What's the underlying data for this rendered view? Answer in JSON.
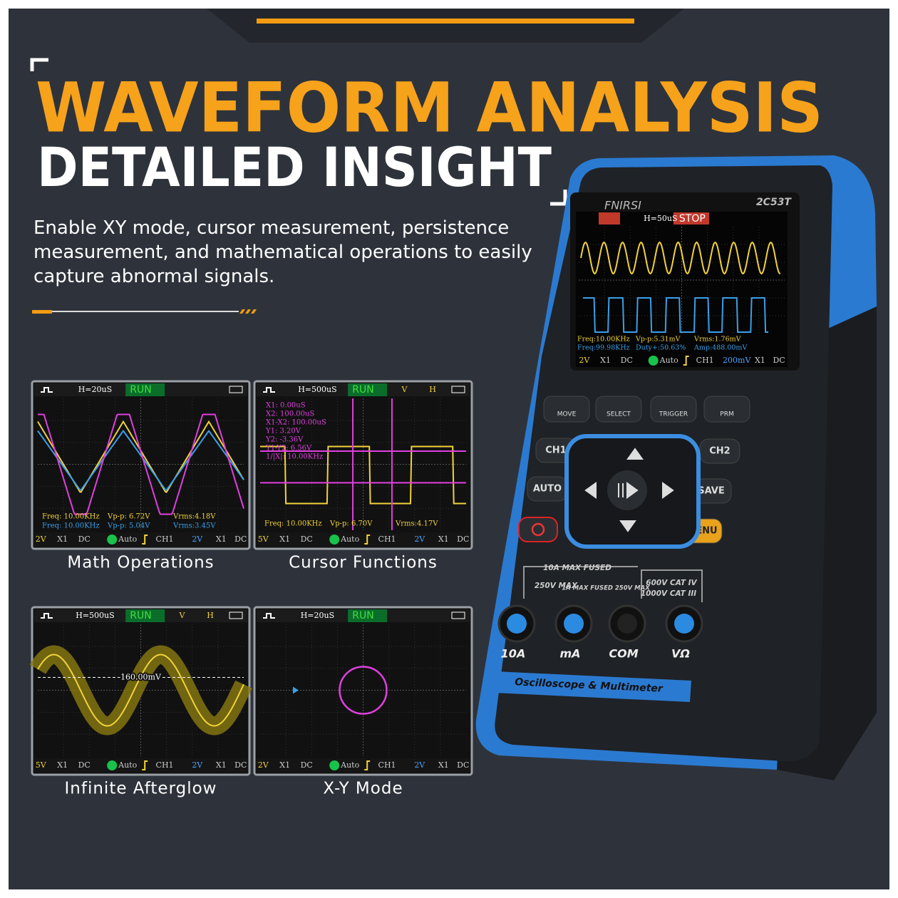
{
  "header": {
    "title": "WAVEFORM ANALYSIS",
    "subtitle": "DETAILED INSIGHT",
    "description": "Enable XY mode, cursor measurement, persistence measurement, and mathematical operations to easily capture abnormal signals."
  },
  "panels": [
    {
      "caption": "Math Operations",
      "status": [
        "H=20uS",
        "RUN"
      ],
      "readouts": [
        [
          "Freq: 10.00KHz",
          "Vp-p: 6.72V",
          "Vrms:4.18V"
        ],
        [
          "Freq: 10.00KHz",
          "Vp-p: 5.04V",
          "Vrms:3.45V"
        ]
      ],
      "footer": [
        "2V",
        "X1",
        "DC",
        "Auto",
        "CH1",
        "2V",
        "X1",
        "DC"
      ]
    },
    {
      "caption": "Cursor Functions",
      "status": [
        "H=500uS",
        "RUN",
        "V",
        "H"
      ],
      "cursors": [
        "X1:    0.00uS",
        "X2:    100.00uS",
        "X1-X2:  100.00uS",
        "Y1:    3.20V",
        "Y2:    -3.36V",
        "Y1-Y2:  6.56V",
        "1/|X|:  10.00KHz"
      ],
      "readouts": [
        [
          "Freq: 10.00KHz",
          "Vp-p: 6.70V",
          "Vrms:4.17V"
        ]
      ],
      "footer": [
        "5V",
        "X1",
        "DC",
        "Auto",
        "CH1",
        "2V",
        "X1",
        "DC"
      ]
    },
    {
      "caption": "Infinite Afterglow",
      "status": [
        "H=500uS",
        "RUN",
        "V",
        "H"
      ],
      "marker": "160.00mV",
      "footer": [
        "5V",
        "X1",
        "DC",
        "Auto",
        "CH1",
        "2V",
        "X1",
        "DC"
      ]
    },
    {
      "caption": "X-Y Mode",
      "status": [
        "H=20uS",
        "RUN"
      ],
      "footer": [
        "2V",
        "X1",
        "DC",
        "Auto",
        "CH1",
        "2V",
        "X1",
        "DC"
      ]
    }
  ],
  "device": {
    "brand": "FNIRSI",
    "model": "2C53T",
    "status": [
      "H=50uS",
      "STOP"
    ],
    "readouts": [
      [
        "Freq:10.00KHz",
        "Vp-p:5.31mV",
        "Vrms:1.76mV"
      ],
      [
        "Freq:99.98KHz",
        "Duty+:50.63%",
        "Amp:488.00mV"
      ]
    ],
    "footer": [
      "2V",
      "X1",
      "DC",
      "Auto",
      "CH1",
      "200mV",
      "X1",
      "DC"
    ],
    "buttons": [
      "MOVE",
      "SELECT",
      "TRIGGER",
      "PRM"
    ],
    "side_buttons": [
      "CH1",
      "CH2",
      "AUTO",
      "SAVE",
      "MENU"
    ],
    "ratings": [
      "10A MAX FUSED",
      "250V MAX",
      "1A MAX FUSED 250V MAX",
      "600V CAT IV",
      "1000V CAT III"
    ],
    "jacks": [
      "10A",
      "mA",
      "COM",
      "VΩ"
    ],
    "label": "Oscilloscope & Multimeter"
  }
}
